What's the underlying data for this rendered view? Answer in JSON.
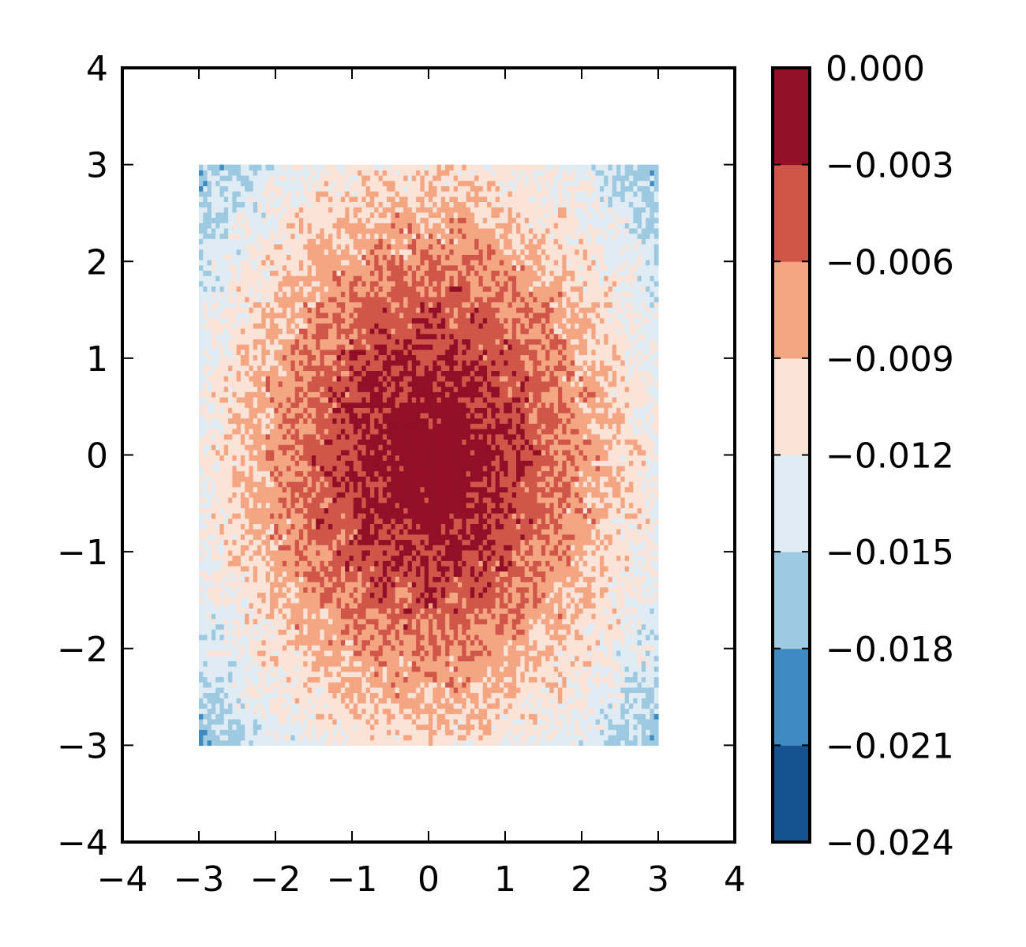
{
  "chart_data": {
    "type": "heatmap",
    "subtype": "filled-contour",
    "title": "",
    "xlabel": "",
    "ylabel": "",
    "xlim": [
      -4,
      4
    ],
    "ylim": [
      -4,
      4
    ],
    "data_extent": {
      "x": [
        -3,
        3
      ],
      "y": [
        -3,
        3
      ]
    },
    "x_ticks": [
      -4,
      -3,
      -2,
      -1,
      0,
      1,
      2,
      3,
      4
    ],
    "y_ticks": [
      -4,
      -3,
      -2,
      -1,
      0,
      1,
      2,
      3,
      4
    ],
    "x_tick_labels": [
      "−4",
      "−3",
      "−2",
      "−1",
      "0",
      "1",
      "2",
      "3",
      "4"
    ],
    "y_tick_labels": [
      "−4",
      "−3",
      "−2",
      "−1",
      "0",
      "1",
      "2",
      "3",
      "4"
    ],
    "description_of_field": "value ≈ 0 at origin, decreasing outward; roughly elliptical contours elongated vertically; noisy speckled texture",
    "field_model": {
      "center_value": 0.0,
      "corner_value": -0.0185,
      "x_scale": 3.0,
      "y_scale": 3.35
    },
    "grid": false,
    "legend": "none",
    "colorbar": {
      "position": "right",
      "levels": [
        -0.024,
        -0.021,
        -0.018,
        -0.015,
        -0.012,
        -0.009,
        -0.006,
        -0.003,
        0.0
      ],
      "tick_labels": [
        "−0.024",
        "−0.021",
        "−0.018",
        "−0.015",
        "−0.012",
        "−0.009",
        "−0.006",
        "−0.003",
        "0.000"
      ],
      "colors": [
        "#175290",
        "#3d8bc0",
        "#9dc9e1",
        "#e0ecf4",
        "#fbe3d8",
        "#f4a582",
        "#d1564a",
        "#930f27"
      ]
    }
  }
}
